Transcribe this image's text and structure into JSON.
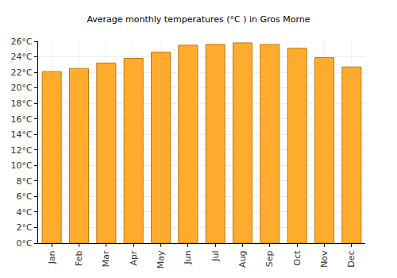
{
  "chart_data": {
    "type": "bar",
    "title": "Average monthly temperatures (°C ) in Gros Morne",
    "categories": [
      "Jan",
      "Feb",
      "Mar",
      "Apr",
      "May",
      "Jun",
      "Jul",
      "Aug",
      "Sep",
      "Oct",
      "Nov",
      "Dec"
    ],
    "values": [
      22.1,
      22.5,
      23.2,
      23.8,
      24.6,
      25.5,
      25.6,
      25.8,
      25.6,
      25.1,
      23.9,
      22.7
    ],
    "color": "#ffab2e",
    "ylim": [
      0,
      26
    ],
    "yticks": [
      {
        "value": 0,
        "label": "0°C"
      },
      {
        "value": 2,
        "label": "2°C"
      },
      {
        "value": 4,
        "label": "4°C"
      },
      {
        "value": 6,
        "label": "6°C"
      },
      {
        "value": 8,
        "label": "8°C"
      },
      {
        "value": 10,
        "label": "10°C"
      },
      {
        "value": 12,
        "label": "12°C"
      },
      {
        "value": 14,
        "label": "14°C"
      },
      {
        "value": 16,
        "label": "16°C"
      },
      {
        "value": 18,
        "label": "18°C"
      },
      {
        "value": 20,
        "label": "20°C"
      },
      {
        "value": 22,
        "label": "22°C"
      },
      {
        "value": 24,
        "label": "24°C"
      },
      {
        "value": 26,
        "label": "26°C"
      }
    ],
    "grid": true
  }
}
